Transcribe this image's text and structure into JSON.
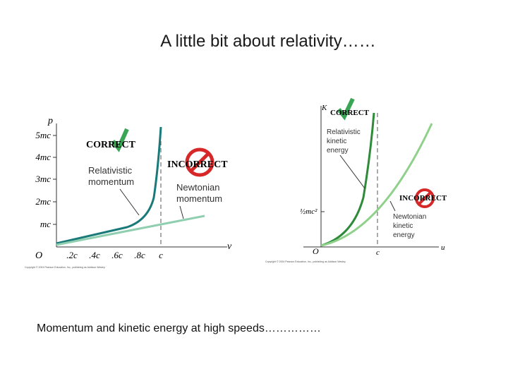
{
  "title": "A little bit about relativity……",
  "figures": [
    {
      "y_axis": "p",
      "x_axis": "v",
      "origin": "O",
      "y_ticks": [
        "5mc",
        "4mc",
        "3mc",
        "2mc",
        "mc"
      ],
      "x_ticks": [
        ".2c",
        ".4c",
        ".6c",
        ".8c",
        "c"
      ],
      "correct": "CORRECT",
      "correct_label": [
        "Relativistic",
        "momentum"
      ],
      "incorrect": "INCORRECT",
      "incorrect_label": [
        "Newtonian",
        "momentum"
      ],
      "copyright": "Copyright © 2004 Pearson Education, Inc., publishing as Addison Wesley."
    },
    {
      "y_axis": "K",
      "x_axis": "u",
      "origin": "O",
      "y_ticks": [
        "½mc²"
      ],
      "x_ticks": [
        "c"
      ],
      "correct": "CORRECT",
      "correct_label": [
        "Relativistic",
        "kinetic",
        "energy"
      ],
      "incorrect": "INCORRECT",
      "incorrect_label": [
        "Newtonian",
        "kinetic",
        "energy"
      ],
      "copyright": "Copyright © 2004 Pearson Education, Inc., publishing as Addison Wesley."
    }
  ],
  "caption": "Momentum and kinetic energy at high speeds……………"
}
